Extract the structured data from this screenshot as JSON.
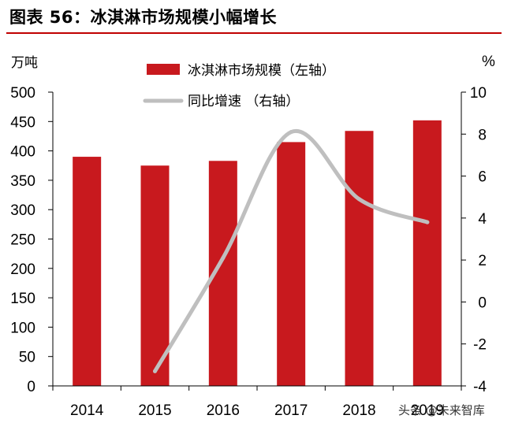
{
  "header": {
    "title": "图表 56：冰淇淋市场规模小幅增长"
  },
  "watermark": "头条 @未来智库",
  "chart_data": {
    "type": "bar",
    "categories": [
      "2014",
      "2015",
      "2016",
      "2017",
      "2018",
      "2019"
    ],
    "y_unit_left": "万吨",
    "y_unit_right": "%",
    "ylim_left": [
      0,
      500
    ],
    "ylim_right": [
      -4,
      10
    ],
    "yticks_left": [
      "0",
      "50",
      "100",
      "150",
      "200",
      "250",
      "300",
      "350",
      "400",
      "450",
      "500"
    ],
    "yticks_right": [
      "-4",
      "-2",
      "0",
      "2",
      "4",
      "6",
      "8",
      "10"
    ],
    "legend_position": "top-center",
    "grid": false,
    "series": [
      {
        "name": "冰淇淋市场规模（左轴）",
        "type": "bar",
        "axis": "left",
        "color": "#c8191e",
        "values": [
          390,
          375,
          383,
          415,
          434,
          452
        ]
      },
      {
        "name": "同比增速 （右轴）",
        "type": "line",
        "axis": "right",
        "color": "#bfbfbf",
        "values": [
          null,
          -3.3,
          2.1,
          8.1,
          4.9,
          3.8
        ]
      }
    ]
  }
}
